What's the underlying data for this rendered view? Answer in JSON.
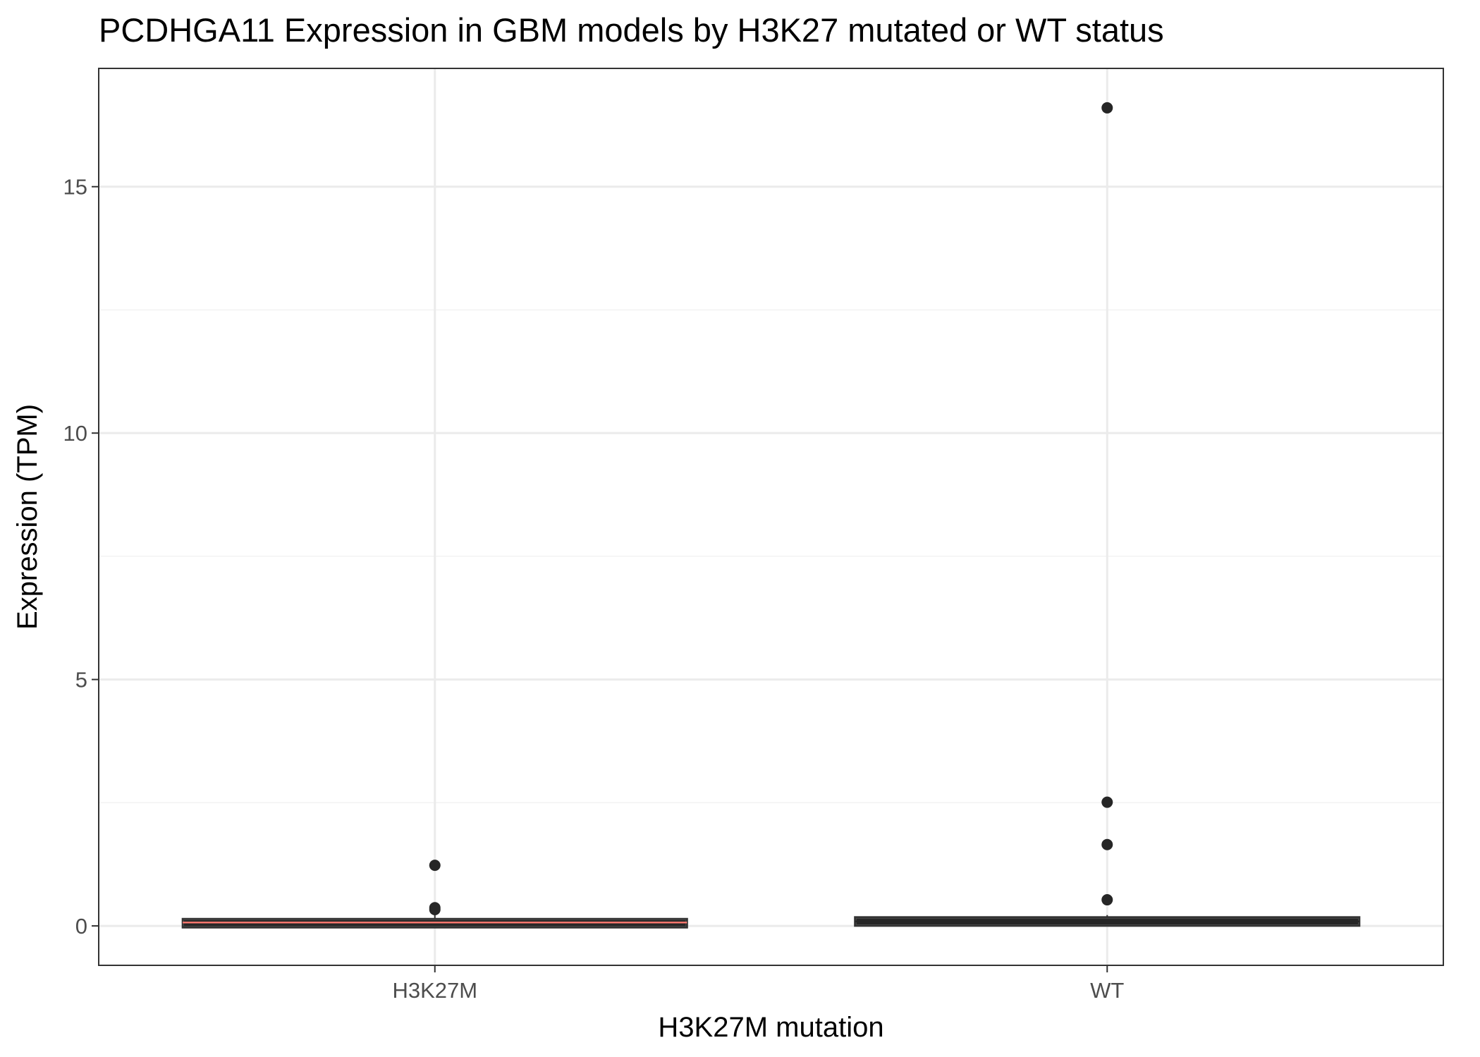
{
  "chart_data": {
    "type": "box",
    "title": "PCDHGA11 Expression in GBM models by H3K27 mutated or WT status",
    "xlabel": "H3K27M mutation",
    "ylabel": "Expression (TPM)",
    "categories": [
      "H3K27M",
      "WT"
    ],
    "ylim": [
      -0.8,
      17.4
    ],
    "y_ticks": [
      0,
      5,
      10,
      15
    ],
    "y_tick_labels": [
      "0",
      "5",
      "10",
      "15"
    ],
    "grid": true,
    "boxes": [
      {
        "category": "H3K27M",
        "lower_whisker": 0.0,
        "q1": 0.0,
        "median": 0.07,
        "q3": 0.11,
        "upper_whisker": 0.22,
        "outliers": [
          1.23,
          0.37,
          0.33
        ],
        "median_color": "#f8766d"
      },
      {
        "category": "WT",
        "lower_whisker": 0.0,
        "q1": 0.03,
        "median": 0.09,
        "q3": 0.15,
        "upper_whisker": 0.22,
        "outliers": [
          16.6,
          2.51,
          1.65,
          0.53
        ],
        "median_color": "#262626"
      }
    ],
    "colors": {
      "panel_border": "#333333",
      "grid_major": "#ebebeb",
      "grid_minor": "#f2f2f2",
      "box_fill": "#ffffff",
      "box_line": "#333333",
      "point": "#262626",
      "tick_label": "#4d4d4d"
    }
  }
}
